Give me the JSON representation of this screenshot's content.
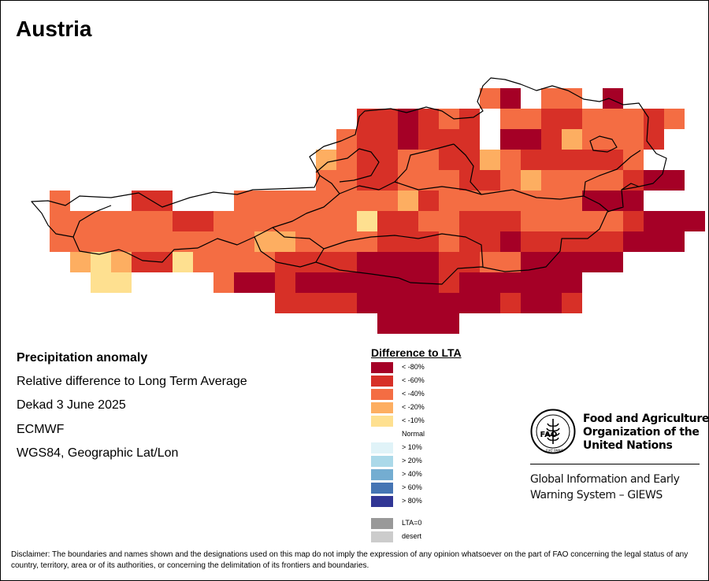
{
  "map": {
    "title": "Austria"
  },
  "info": {
    "title": "Precipitation anomaly",
    "subtitle": "Relative difference to Long Term Average",
    "period": "Dekad 3 June 2025",
    "source": "ECMWF",
    "projection": "WGS84, Geographic Lat/Lon"
  },
  "legend": {
    "title": "Difference to LTA",
    "items": [
      {
        "label": "< -80%",
        "color": "#a50026"
      },
      {
        "label": "< -60%",
        "color": "#d73027"
      },
      {
        "label": "< -40%",
        "color": "#f46d43"
      },
      {
        "label": "< -20%",
        "color": "#fdae61"
      },
      {
        "label": "< -10%",
        "color": "#fee090"
      },
      {
        "label": "Normal",
        "color": "#ffffff"
      },
      {
        "label": "> 10%",
        "color": "#e0f3f8"
      },
      {
        "label": "> 20%",
        "color": "#abd9e9"
      },
      {
        "label": "> 40%",
        "color": "#74add1"
      },
      {
        "label": "> 60%",
        "color": "#4575b4"
      },
      {
        "label": "> 80%",
        "color": "#313695"
      },
      {
        "label": "LTA=0",
        "color": "#999999"
      },
      {
        "label": "desert",
        "color": "#cccccc"
      }
    ]
  },
  "fao": {
    "logo_text": "FAO",
    "logo_motto": "FIAT PANIS",
    "name_line1": "Food and Agriculture",
    "name_line2": "Organization of the",
    "name_line3": "United Nations",
    "giews_line1": "Global Information and Early",
    "giews_line2": "Warning System – GIEWS"
  },
  "disclaimer": "Disclaimer: The boundaries and names shown and the designations used on this map do not imply the expression of any opinion whatsoever on the part of FAO concerning the legal status of any country, territory, area or of its authorities, or concerning the delimitation of its frontiers and boundaries."
}
